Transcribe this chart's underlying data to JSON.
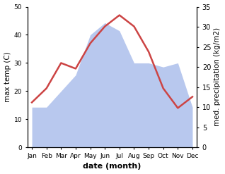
{
  "months": [
    "Jan",
    "Feb",
    "Mar",
    "Apr",
    "May",
    "Jun",
    "Jul",
    "Aug",
    "Sep",
    "Oct",
    "Nov",
    "Dec"
  ],
  "max_temp": [
    16,
    21,
    30,
    28,
    37,
    43,
    47,
    43,
    34,
    21,
    14,
    18
  ],
  "precipitation": [
    10,
    10,
    14,
    18,
    28,
    31,
    29,
    21,
    21,
    20,
    21,
    10
  ],
  "temp_color": "#cc4444",
  "precip_color": "#b8c8ee",
  "left_ylabel": "max temp (C)",
  "right_ylabel": "med. precipitation (kg/m2)",
  "xlabel": "date (month)",
  "left_ylim": [
    0,
    50
  ],
  "right_ylim": [
    0,
    35
  ],
  "left_yticks": [
    0,
    10,
    20,
    30,
    40,
    50
  ],
  "right_yticks": [
    0,
    5,
    10,
    15,
    20,
    25,
    30,
    35
  ]
}
